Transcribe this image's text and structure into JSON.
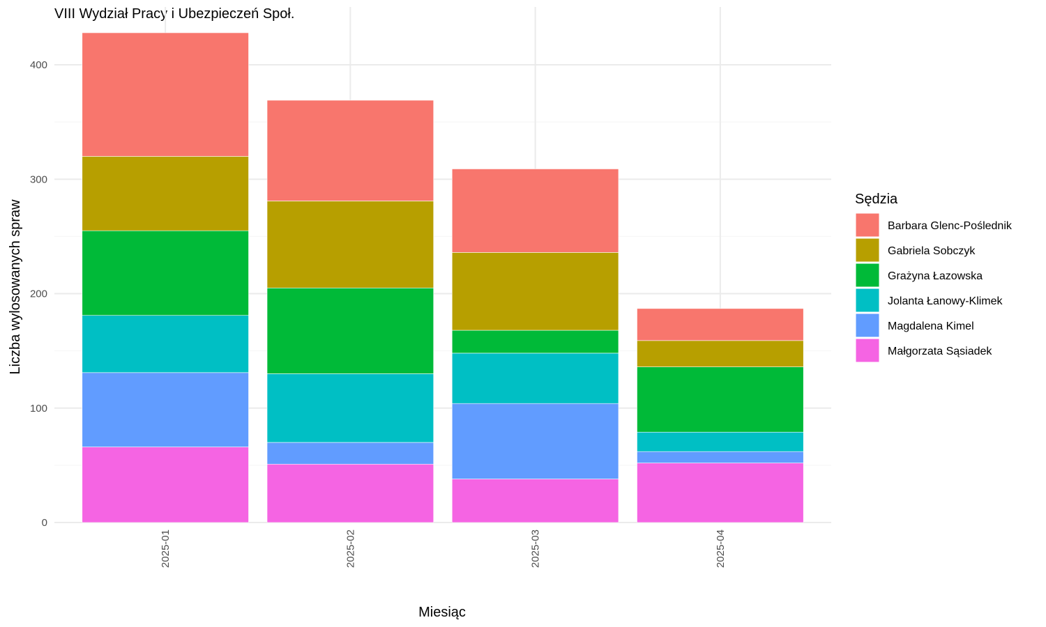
{
  "chart_data": {
    "type": "bar",
    "stacked": true,
    "title": "VIII Wydział Pracy i Ubezpieczeń Społ.",
    "xlabel": "Miesiąc",
    "ylabel": "Liczba wylosowanych spraw",
    "categories": [
      "2025-01",
      "2025-02",
      "2025-03",
      "2025-04"
    ],
    "ylim": [
      0,
      440
    ],
    "yticks": [
      0,
      100,
      200,
      300,
      400
    ],
    "grid": true,
    "legend": {
      "title": "Sędzia",
      "position": "right"
    },
    "series": [
      {
        "name": "Małgorzata Sąsiadek",
        "color": "#F564E3",
        "values": [
          66,
          51,
          38,
          52
        ]
      },
      {
        "name": "Magdalena Kimel",
        "color": "#619CFF",
        "values": [
          65,
          19,
          66,
          10
        ]
      },
      {
        "name": "Jolanta Łanowy-Klimek",
        "color": "#00BFC4",
        "values": [
          50,
          60,
          44,
          17
        ]
      },
      {
        "name": "Grażyna Łazowska",
        "color": "#00BA38",
        "values": [
          74,
          75,
          20,
          57
        ]
      },
      {
        "name": "Gabriela Sobczyk",
        "color": "#B79F00",
        "values": [
          65,
          76,
          68,
          23
        ]
      },
      {
        "name": "Barbara Glenc-Poślednik",
        "color": "#F8766D",
        "values": [
          108,
          88,
          73,
          28
        ]
      }
    ]
  }
}
